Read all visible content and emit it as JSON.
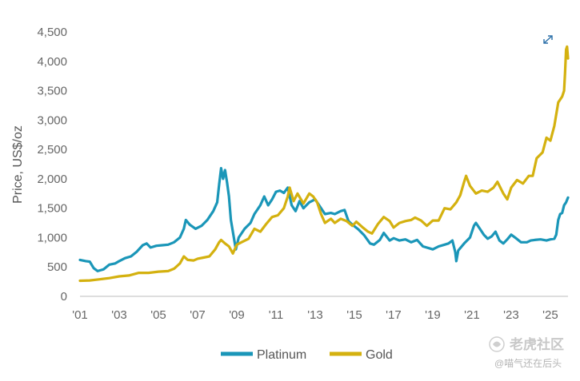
{
  "chart_data": {
    "type": "line",
    "ylabel": "Price, US$/oz",
    "ylim": [
      0,
      4500
    ],
    "yticks": [
      0,
      500,
      1000,
      1500,
      2000,
      2500,
      3000,
      3500,
      4000,
      4500
    ],
    "ytick_labels": [
      "0",
      "500",
      "1,000",
      "1,500",
      "2,000",
      "2,500",
      "3,000",
      "3,500",
      "4,000",
      "4,500"
    ],
    "xlim": [
      2001,
      2025.9
    ],
    "xticks": [
      2001,
      2003,
      2005,
      2007,
      2009,
      2011,
      2013,
      2015,
      2017,
      2019,
      2021,
      2023,
      2025
    ],
    "xtick_labels": [
      "'01",
      "'03",
      "'05",
      "'07",
      "'09",
      "'11",
      "'13",
      "'15",
      "'17",
      "'19",
      "'21",
      "'23",
      "'25"
    ],
    "grid": false,
    "legend_position": "bottom-center",
    "series": [
      {
        "name": "Platinum",
        "color": "#1a96b8",
        "points": [
          [
            2001.0,
            620
          ],
          [
            2001.3,
            600
          ],
          [
            2001.5,
            590
          ],
          [
            2001.7,
            480
          ],
          [
            2001.9,
            430
          ],
          [
            2002.2,
            460
          ],
          [
            2002.5,
            540
          ],
          [
            2002.8,
            560
          ],
          [
            2003.0,
            600
          ],
          [
            2003.3,
            650
          ],
          [
            2003.6,
            680
          ],
          [
            2003.9,
            760
          ],
          [
            2004.2,
            870
          ],
          [
            2004.4,
            900
          ],
          [
            2004.6,
            830
          ],
          [
            2004.9,
            860
          ],
          [
            2005.2,
            870
          ],
          [
            2005.5,
            880
          ],
          [
            2005.8,
            920
          ],
          [
            2006.1,
            1000
          ],
          [
            2006.3,
            1150
          ],
          [
            2006.4,
            1300
          ],
          [
            2006.6,
            1220
          ],
          [
            2006.9,
            1150
          ],
          [
            2007.2,
            1200
          ],
          [
            2007.5,
            1300
          ],
          [
            2007.8,
            1450
          ],
          [
            2008.0,
            1600
          ],
          [
            2008.1,
            1900
          ],
          [
            2008.2,
            2180
          ],
          [
            2008.3,
            2000
          ],
          [
            2008.4,
            2150
          ],
          [
            2008.5,
            1950
          ],
          [
            2008.6,
            1700
          ],
          [
            2008.7,
            1300
          ],
          [
            2008.85,
            1000
          ],
          [
            2008.95,
            800
          ],
          [
            2009.1,
            1000
          ],
          [
            2009.4,
            1150
          ],
          [
            2009.7,
            1250
          ],
          [
            2009.9,
            1400
          ],
          [
            2010.2,
            1550
          ],
          [
            2010.4,
            1700
          ],
          [
            2010.6,
            1550
          ],
          [
            2010.8,
            1650
          ],
          [
            2011.0,
            1780
          ],
          [
            2011.2,
            1800
          ],
          [
            2011.4,
            1760
          ],
          [
            2011.6,
            1850
          ],
          [
            2011.8,
            1550
          ],
          [
            2012.0,
            1450
          ],
          [
            2012.2,
            1620
          ],
          [
            2012.4,
            1500
          ],
          [
            2012.7,
            1600
          ],
          [
            2013.0,
            1650
          ],
          [
            2013.2,
            1550
          ],
          [
            2013.5,
            1400
          ],
          [
            2013.8,
            1420
          ],
          [
            2014.0,
            1400
          ],
          [
            2014.3,
            1450
          ],
          [
            2014.5,
            1470
          ],
          [
            2014.7,
            1280
          ],
          [
            2014.9,
            1220
          ],
          [
            2015.2,
            1140
          ],
          [
            2015.5,
            1040
          ],
          [
            2015.8,
            900
          ],
          [
            2016.0,
            880
          ],
          [
            2016.3,
            960
          ],
          [
            2016.5,
            1080
          ],
          [
            2016.8,
            950
          ],
          [
            2017.0,
            990
          ],
          [
            2017.3,
            950
          ],
          [
            2017.6,
            970
          ],
          [
            2017.9,
            920
          ],
          [
            2018.2,
            960
          ],
          [
            2018.5,
            850
          ],
          [
            2018.8,
            820
          ],
          [
            2019.0,
            800
          ],
          [
            2019.3,
            850
          ],
          [
            2019.6,
            880
          ],
          [
            2019.8,
            900
          ],
          [
            2020.0,
            950
          ],
          [
            2020.15,
            750
          ],
          [
            2020.2,
            600
          ],
          [
            2020.3,
            780
          ],
          [
            2020.6,
            900
          ],
          [
            2020.9,
            1000
          ],
          [
            2021.1,
            1200
          ],
          [
            2021.2,
            1250
          ],
          [
            2021.4,
            1150
          ],
          [
            2021.6,
            1050
          ],
          [
            2021.8,
            980
          ],
          [
            2022.0,
            1020
          ],
          [
            2022.2,
            1100
          ],
          [
            2022.4,
            950
          ],
          [
            2022.6,
            900
          ],
          [
            2022.8,
            970
          ],
          [
            2023.0,
            1050
          ],
          [
            2023.2,
            1000
          ],
          [
            2023.5,
            920
          ],
          [
            2023.8,
            920
          ],
          [
            2024.0,
            950
          ],
          [
            2024.2,
            960
          ],
          [
            2024.5,
            970
          ],
          [
            2024.8,
            950
          ],
          [
            2025.0,
            970
          ],
          [
            2025.2,
            980
          ],
          [
            2025.3,
            1050
          ],
          [
            2025.4,
            1300
          ],
          [
            2025.5,
            1400
          ],
          [
            2025.6,
            1420
          ],
          [
            2025.7,
            1550
          ],
          [
            2025.8,
            1600
          ],
          [
            2025.9,
            1680
          ]
        ]
      },
      {
        "name": "Gold",
        "color": "#d4b10f",
        "points": [
          [
            2001.0,
            265
          ],
          [
            2001.5,
            270
          ],
          [
            2002.0,
            290
          ],
          [
            2002.5,
            310
          ],
          [
            2003.0,
            340
          ],
          [
            2003.5,
            355
          ],
          [
            2004.0,
            400
          ],
          [
            2004.5,
            400
          ],
          [
            2005.0,
            420
          ],
          [
            2005.5,
            430
          ],
          [
            2005.8,
            470
          ],
          [
            2006.1,
            560
          ],
          [
            2006.3,
            680
          ],
          [
            2006.5,
            620
          ],
          [
            2006.8,
            610
          ],
          [
            2007.0,
            640
          ],
          [
            2007.3,
            660
          ],
          [
            2007.6,
            680
          ],
          [
            2007.9,
            800
          ],
          [
            2008.1,
            920
          ],
          [
            2008.2,
            960
          ],
          [
            2008.4,
            900
          ],
          [
            2008.6,
            850
          ],
          [
            2008.8,
            730
          ],
          [
            2009.0,
            880
          ],
          [
            2009.3,
            930
          ],
          [
            2009.6,
            980
          ],
          [
            2009.9,
            1150
          ],
          [
            2010.2,
            1100
          ],
          [
            2010.5,
            1230
          ],
          [
            2010.8,
            1350
          ],
          [
            2011.1,
            1380
          ],
          [
            2011.4,
            1500
          ],
          [
            2011.6,
            1700
          ],
          [
            2011.7,
            1850
          ],
          [
            2011.9,
            1620
          ],
          [
            2012.1,
            1750
          ],
          [
            2012.4,
            1580
          ],
          [
            2012.7,
            1750
          ],
          [
            2012.9,
            1700
          ],
          [
            2013.1,
            1600
          ],
          [
            2013.3,
            1400
          ],
          [
            2013.5,
            1250
          ],
          [
            2013.8,
            1320
          ],
          [
            2014.0,
            1250
          ],
          [
            2014.3,
            1320
          ],
          [
            2014.6,
            1280
          ],
          [
            2014.9,
            1200
          ],
          [
            2015.1,
            1270
          ],
          [
            2015.4,
            1180
          ],
          [
            2015.7,
            1100
          ],
          [
            2015.9,
            1070
          ],
          [
            2016.2,
            1230
          ],
          [
            2016.5,
            1350
          ],
          [
            2016.8,
            1280
          ],
          [
            2017.0,
            1170
          ],
          [
            2017.3,
            1250
          ],
          [
            2017.6,
            1280
          ],
          [
            2017.9,
            1300
          ],
          [
            2018.1,
            1340
          ],
          [
            2018.4,
            1290
          ],
          [
            2018.7,
            1200
          ],
          [
            2019.0,
            1290
          ],
          [
            2019.3,
            1290
          ],
          [
            2019.6,
            1500
          ],
          [
            2019.9,
            1480
          ],
          [
            2020.2,
            1600
          ],
          [
            2020.4,
            1720
          ],
          [
            2020.6,
            1950
          ],
          [
            2020.7,
            2050
          ],
          [
            2020.9,
            1880
          ],
          [
            2021.2,
            1750
          ],
          [
            2021.5,
            1800
          ],
          [
            2021.8,
            1780
          ],
          [
            2022.1,
            1850
          ],
          [
            2022.3,
            1950
          ],
          [
            2022.6,
            1750
          ],
          [
            2022.8,
            1650
          ],
          [
            2023.0,
            1850
          ],
          [
            2023.3,
            1980
          ],
          [
            2023.6,
            1920
          ],
          [
            2023.9,
            2050
          ],
          [
            2024.1,
            2050
          ],
          [
            2024.3,
            2350
          ],
          [
            2024.6,
            2450
          ],
          [
            2024.8,
            2700
          ],
          [
            2025.0,
            2650
          ],
          [
            2025.2,
            2900
          ],
          [
            2025.4,
            3300
          ],
          [
            2025.5,
            3350
          ],
          [
            2025.6,
            3400
          ],
          [
            2025.7,
            3500
          ],
          [
            2025.75,
            3800
          ],
          [
            2025.8,
            4200
          ],
          [
            2025.85,
            4250
          ],
          [
            2025.9,
            4050
          ]
        ]
      }
    ]
  },
  "watermark": {
    "brand": "老虎社区",
    "author": "@喵气还在后头"
  },
  "icons": {
    "expand": "expand-diagonal-arrows-icon",
    "watermark_logo": "tiger-logo-icon"
  }
}
